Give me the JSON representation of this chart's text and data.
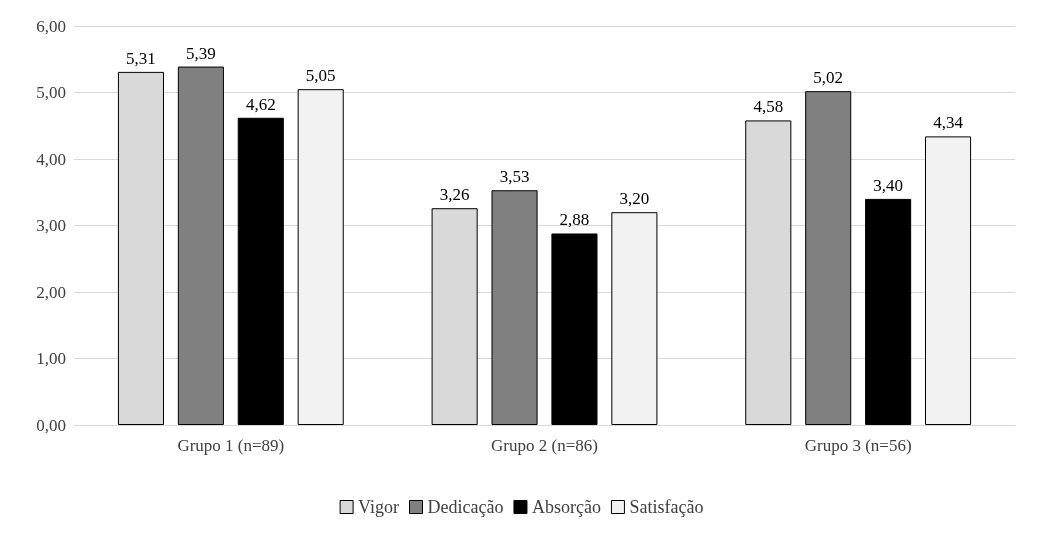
{
  "chart_data": {
    "type": "bar",
    "categories": [
      "Grupo 1 (n=89)",
      "Grupo 2 (n=86)",
      "Grupo 3 (n=56)"
    ],
    "series": [
      {
        "name": "Vigor",
        "color": "#d9d9d9",
        "values": [
          5.31,
          3.26,
          4.58
        ],
        "value_labels": [
          "5,31",
          "3,26",
          "4,58"
        ]
      },
      {
        "name": "Dedicação",
        "color": "#808080",
        "values": [
          5.39,
          3.53,
          5.02
        ],
        "value_labels": [
          "5,39",
          "3,53",
          "5,02"
        ]
      },
      {
        "name": "Absorção",
        "color": "#000000",
        "values": [
          4.62,
          2.88,
          3.4
        ],
        "value_labels": [
          "4,62",
          "2,88",
          "3,40"
        ]
      },
      {
        "name": "Satisfação",
        "color": "#f2f2f2",
        "values": [
          5.05,
          3.2,
          4.34
        ],
        "value_labels": [
          "5,05",
          "3,20",
          "4,34"
        ]
      }
    ],
    "ylim": [
      0,
      6
    ],
    "yticks": [
      {
        "value": 0,
        "label": "0,00"
      },
      {
        "value": 1,
        "label": "1,00"
      },
      {
        "value": 2,
        "label": "2,00"
      },
      {
        "value": 3,
        "label": "3,00"
      },
      {
        "value": 4,
        "label": "4,00"
      },
      {
        "value": 5,
        "label": "5,00"
      },
      {
        "value": 6,
        "label": "6,00"
      }
    ],
    "grid": "y",
    "legend": "bottom"
  }
}
